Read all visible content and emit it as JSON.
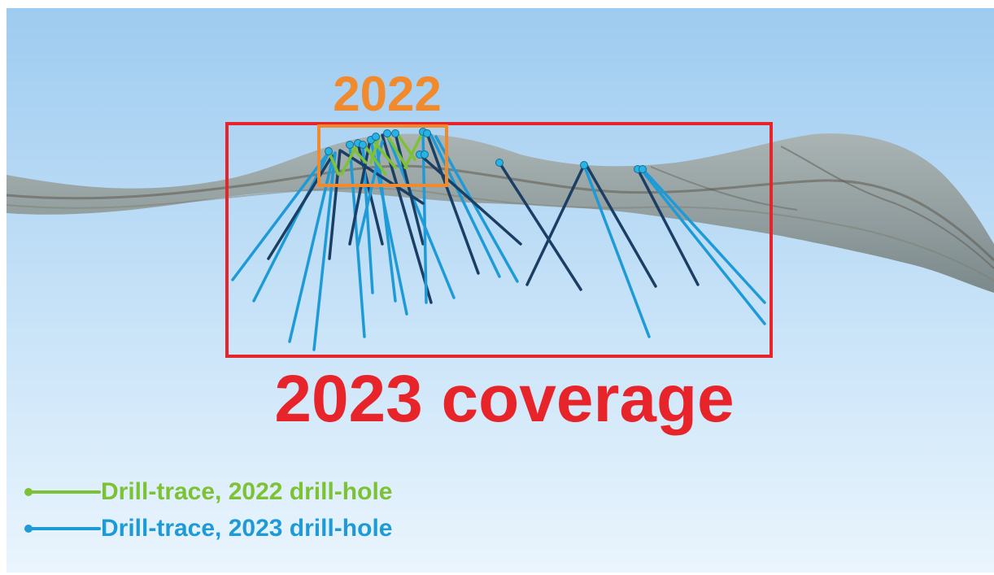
{
  "labels": {
    "year_2022": "2022",
    "coverage_2023": "2023 coverage"
  },
  "legend": {
    "items": [
      {
        "label": "Drill-trace, 2022 drill-hole",
        "color": "#7cc234"
      },
      {
        "label": "Drill-trace, 2023 drill-hole",
        "color": "#1e9bd7"
      }
    ]
  },
  "colors": {
    "box_2022": "#f08a2c",
    "box_2023": "#e8242b",
    "trace_2022": "#7cc234",
    "trace_2023": "#1e9bd7",
    "trace_2023_dark": "#1b3f64",
    "sky_top": "#9ecbf0",
    "sky_bottom": "#eaf5fd",
    "surface": "#8a8f8c"
  }
}
